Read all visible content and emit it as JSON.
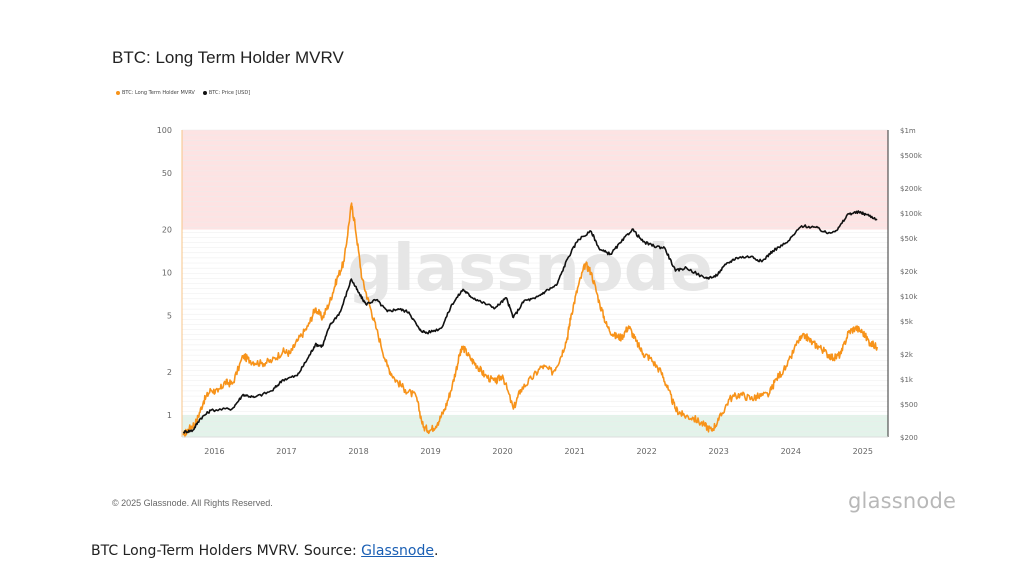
{
  "copyright": "© 2025 Glassnode. All Rights Reserved.",
  "brand_logo": "glassnode",
  "watermark": "glassnode",
  "caption": {
    "prefix": "BTC Long-Term Holders MVRV. Source: ",
    "link_text": "Glassnode",
    "suffix": "."
  },
  "colors": {
    "mvrv": "#f7931a",
    "price": "#111111",
    "red_zone": "#fde3e3",
    "green_zone": "#e3f3ea",
    "axis_text": "#666666",
    "grid": "#ececec"
  },
  "chart_data": {
    "type": "line",
    "title": "BTC: Long Term Holder MVRV",
    "legend_position": "top-left",
    "grid": true,
    "y_scale": "log",
    "x_ticks": [
      "2016",
      "2017",
      "2018",
      "2019",
      "2020",
      "2021",
      "2022",
      "2023",
      "2024",
      "2025"
    ],
    "y_left_ticks": [
      {
        "value": 1,
        "label": "1"
      },
      {
        "value": 2,
        "label": "2"
      },
      {
        "value": 5,
        "label": "5"
      },
      {
        "value": 10,
        "label": "10"
      },
      {
        "value": 20,
        "label": "20"
      },
      {
        "value": 50,
        "label": "50"
      },
      {
        "value": 100,
        "label": "100"
      }
    ],
    "y_right_ticks": [
      {
        "value": 200,
        "label": "$200"
      },
      {
        "value": 500,
        "label": "$500"
      },
      {
        "value": 1000,
        "label": "$1k"
      },
      {
        "value": 2000,
        "label": "$2k"
      },
      {
        "value": 5000,
        "label": "$5k"
      },
      {
        "value": 10000,
        "label": "$10k"
      },
      {
        "value": 20000,
        "label": "$20k"
      },
      {
        "value": 50000,
        "label": "$50k"
      },
      {
        "value": 100000,
        "label": "$100k"
      },
      {
        "value": 200000,
        "label": "$200k"
      },
      {
        "value": 500000,
        "label": "$500k"
      },
      {
        "value": 1000000,
        "label": "$1m"
      }
    ],
    "y_left_range": [
      0.7,
      100
    ],
    "y_right_range": [
      200,
      1000000
    ],
    "x_range": [
      2015.6,
      2025.4
    ],
    "zones": [
      {
        "from": 20,
        "to": 100,
        "label": "high"
      },
      {
        "from": 0.7,
        "to": 1,
        "label": "low"
      }
    ],
    "series": [
      {
        "name": "BTC: Long Term Holder MVRV",
        "axis": "left",
        "points": [
          [
            2015.62,
            0.72
          ],
          [
            2015.7,
            0.8
          ],
          [
            2015.8,
            0.9
          ],
          [
            2015.9,
            1.25
          ],
          [
            2016.0,
            1.5
          ],
          [
            2016.1,
            1.45
          ],
          [
            2016.2,
            1.7
          ],
          [
            2016.3,
            1.65
          ],
          [
            2016.45,
            2.6
          ],
          [
            2016.55,
            2.4
          ],
          [
            2016.7,
            2.3
          ],
          [
            2016.85,
            2.4
          ],
          [
            2017.0,
            2.8
          ],
          [
            2017.1,
            2.7
          ],
          [
            2017.2,
            3.3
          ],
          [
            2017.35,
            4.2
          ],
          [
            2017.45,
            5.6
          ],
          [
            2017.55,
            4.8
          ],
          [
            2017.65,
            6.2
          ],
          [
            2017.75,
            9.0
          ],
          [
            2017.85,
            12.0
          ],
          [
            2017.95,
            30.0
          ],
          [
            2018.0,
            22.0
          ],
          [
            2018.1,
            9.0
          ],
          [
            2018.2,
            6.0
          ],
          [
            2018.3,
            4.0
          ],
          [
            2018.45,
            2.2
          ],
          [
            2018.55,
            1.8
          ],
          [
            2018.7,
            1.5
          ],
          [
            2018.85,
            1.35
          ],
          [
            2018.95,
            0.82
          ],
          [
            2019.05,
            0.78
          ],
          [
            2019.15,
            0.88
          ],
          [
            2019.25,
            1.1
          ],
          [
            2019.35,
            1.6
          ],
          [
            2019.45,
            2.6
          ],
          [
            2019.5,
            3.0
          ],
          [
            2019.6,
            2.5
          ],
          [
            2019.7,
            2.2
          ],
          [
            2019.8,
            1.9
          ],
          [
            2019.95,
            1.7
          ],
          [
            2020.05,
            1.9
          ],
          [
            2020.2,
            1.1
          ],
          [
            2020.3,
            1.5
          ],
          [
            2020.45,
            1.8
          ],
          [
            2020.6,
            2.2
          ],
          [
            2020.75,
            2.0
          ],
          [
            2020.85,
            2.5
          ],
          [
            2020.95,
            3.5
          ],
          [
            2021.0,
            5.0
          ],
          [
            2021.1,
            8.0
          ],
          [
            2021.2,
            11.5
          ],
          [
            2021.28,
            10.0
          ],
          [
            2021.4,
            6.0
          ],
          [
            2021.5,
            4.2
          ],
          [
            2021.6,
            3.6
          ],
          [
            2021.7,
            3.5
          ],
          [
            2021.8,
            4.2
          ],
          [
            2021.9,
            3.3
          ],
          [
            2022.0,
            2.7
          ],
          [
            2022.1,
            2.5
          ],
          [
            2022.25,
            2.0
          ],
          [
            2022.35,
            1.5
          ],
          [
            2022.45,
            1.1
          ],
          [
            2022.55,
            1.0
          ],
          [
            2022.7,
            0.95
          ],
          [
            2022.85,
            0.85
          ],
          [
            2022.95,
            0.78
          ],
          [
            2023.05,
            0.92
          ],
          [
            2023.2,
            1.3
          ],
          [
            2023.35,
            1.4
          ],
          [
            2023.5,
            1.3
          ],
          [
            2023.6,
            1.35
          ],
          [
            2023.75,
            1.4
          ],
          [
            2023.85,
            1.8
          ],
          [
            2024.0,
            2.2
          ],
          [
            2024.15,
            3.3
          ],
          [
            2024.25,
            3.6
          ],
          [
            2024.35,
            3.2
          ],
          [
            2024.45,
            3.0
          ],
          [
            2024.55,
            2.7
          ],
          [
            2024.65,
            2.5
          ],
          [
            2024.75,
            2.7
          ],
          [
            2024.85,
            3.8
          ],
          [
            2024.95,
            4.1
          ],
          [
            2025.05,
            3.8
          ],
          [
            2025.15,
            3.2
          ],
          [
            2025.25,
            3.0
          ]
        ]
      },
      {
        "name": "BTC: Price [USD]",
        "axis": "right",
        "points": [
          [
            2015.62,
            230
          ],
          [
            2015.75,
            240
          ],
          [
            2015.85,
            330
          ],
          [
            2016.0,
            420
          ],
          [
            2016.3,
            440
          ],
          [
            2016.45,
            650
          ],
          [
            2016.6,
            600
          ],
          [
            2016.85,
            720
          ],
          [
            2017.0,
            980
          ],
          [
            2017.2,
            1100
          ],
          [
            2017.35,
            1800
          ],
          [
            2017.45,
            2600
          ],
          [
            2017.55,
            2500
          ],
          [
            2017.65,
            4400
          ],
          [
            2017.8,
            6500
          ],
          [
            2017.95,
            16000
          ],
          [
            2018.05,
            11000
          ],
          [
            2018.15,
            8000
          ],
          [
            2018.3,
            9000
          ],
          [
            2018.45,
            6500
          ],
          [
            2018.6,
            7000
          ],
          [
            2018.75,
            6400
          ],
          [
            2018.9,
            3900
          ],
          [
            2019.0,
            3600
          ],
          [
            2019.2,
            4100
          ],
          [
            2019.35,
            8000
          ],
          [
            2019.5,
            12000
          ],
          [
            2019.6,
            10000
          ],
          [
            2019.75,
            8500
          ],
          [
            2019.95,
            7200
          ],
          [
            2020.1,
            9500
          ],
          [
            2020.2,
            5500
          ],
          [
            2020.35,
            8800
          ],
          [
            2020.5,
            9300
          ],
          [
            2020.65,
            11500
          ],
          [
            2020.8,
            13500
          ],
          [
            2020.95,
            28000
          ],
          [
            2021.1,
            48000
          ],
          [
            2021.28,
            60000
          ],
          [
            2021.4,
            36000
          ],
          [
            2021.55,
            32000
          ],
          [
            2021.7,
            45000
          ],
          [
            2021.85,
            64000
          ],
          [
            2022.0,
            45000
          ],
          [
            2022.15,
            40000
          ],
          [
            2022.3,
            38000
          ],
          [
            2022.45,
            20000
          ],
          [
            2022.6,
            22000
          ],
          [
            2022.85,
            16500
          ],
          [
            2023.0,
            17000
          ],
          [
            2023.15,
            24000
          ],
          [
            2023.3,
            29000
          ],
          [
            2023.5,
            30000
          ],
          [
            2023.65,
            26000
          ],
          [
            2023.8,
            35000
          ],
          [
            2024.0,
            44000
          ],
          [
            2024.2,
            70000
          ],
          [
            2024.4,
            67000
          ],
          [
            2024.55,
            57000
          ],
          [
            2024.7,
            63000
          ],
          [
            2024.85,
            98000
          ],
          [
            2025.0,
            102000
          ],
          [
            2025.1,
            96000
          ],
          [
            2025.25,
            84000
          ]
        ]
      }
    ]
  }
}
